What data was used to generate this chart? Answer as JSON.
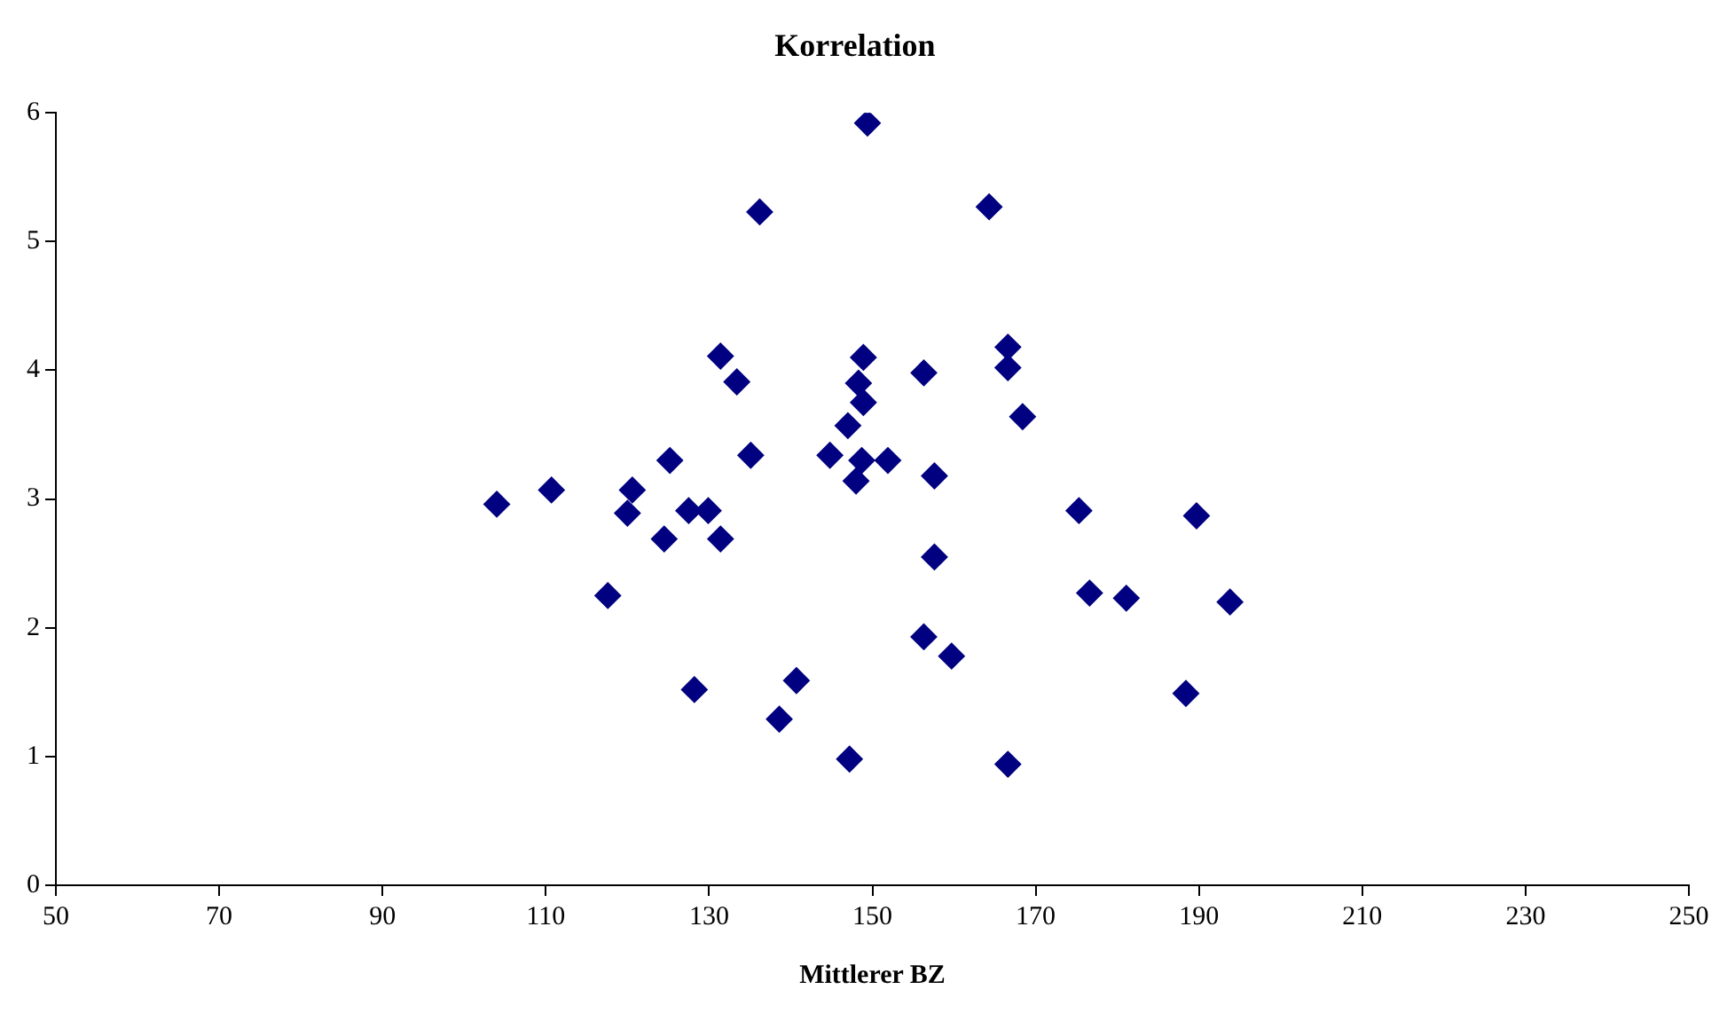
{
  "chart_data": {
    "type": "scatter",
    "title": "Korrelation",
    "xlabel": "Mittlerer BZ",
    "x": [
      104,
      110.7,
      117.6,
      120,
      120.6,
      124.5,
      125.2,
      127.5,
      128.2,
      129.9,
      131.4,
      131.4,
      133.4,
      135.1,
      136.2,
      138.6,
      140.7,
      144.8,
      147,
      147.2,
      148,
      148.3,
      148.7,
      148.9,
      148.9,
      149.4,
      151.9,
      156.3,
      156.3,
      157.6,
      157.6,
      159.7,
      164.3,
      166.6,
      166.6,
      166.6,
      168.4,
      175.3,
      176.6,
      181.1,
      188.4,
      189.7,
      193.8
    ],
    "values": [
      2.96,
      3.07,
      2.25,
      2.89,
      3.07,
      2.69,
      3.3,
      2.91,
      1.52,
      2.91,
      4.11,
      2.69,
      3.91,
      3.34,
      5.23,
      1.29,
      1.59,
      3.34,
      3.57,
      0.98,
      3.14,
      3.9,
      3.3,
      3.75,
      4.1,
      5.92,
      3.3,
      3.98,
      1.93,
      2.55,
      3.18,
      1.78,
      5.27,
      4.18,
      4.02,
      0.94,
      3.64,
      2.91,
      2.27,
      2.23,
      1.49,
      2.87,
      2.2
    ],
    "color": "#000080",
    "marker": "diamond",
    "xlim": [
      50,
      250
    ],
    "xticks": [
      50,
      70,
      90,
      110,
      130,
      150,
      170,
      190,
      210,
      230,
      250
    ],
    "ylim": [
      0,
      6
    ],
    "yticks": [
      0,
      1,
      2,
      3,
      4,
      5,
      6
    ],
    "grid": false,
    "legend": false
  }
}
